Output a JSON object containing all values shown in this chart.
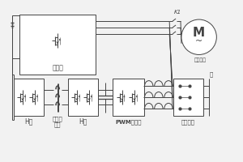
{
  "bg_color": "#f2f2f2",
  "line_color": "#444444",
  "fill_color": "#ffffff",
  "labels": {
    "inverter": "逆变器",
    "motor": "M",
    "drive_motor": "驱动电机",
    "H_bridge1": "H桥",
    "hf_transformer": "高频变\n压器",
    "H_bridge2": "H桥",
    "pwm_rectifier": "PWM整流器",
    "grid_interface": "电网接口",
    "K1": "K1",
    "top_right": "拥"
  },
  "figsize": [
    3.0,
    2.0
  ],
  "dpi": 100
}
